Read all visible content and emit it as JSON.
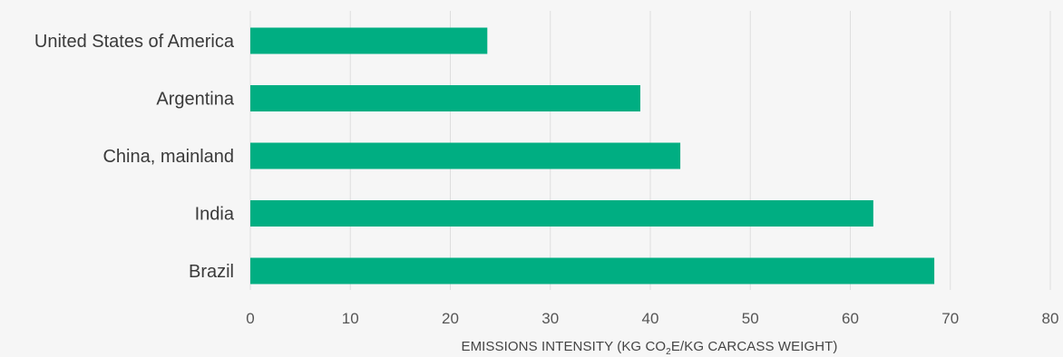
{
  "chart_data": {
    "type": "bar",
    "orientation": "horizontal",
    "categories": [
      "United States of America",
      "Argentina",
      "China, mainland",
      "India",
      "Brazil"
    ],
    "values": [
      23.7,
      39.0,
      43.0,
      62.3,
      68.4
    ],
    "xlabel_parts": [
      "EMISSIONS INTENSITY (KG CO",
      "2",
      "E/KG CARCASS WEIGHT)"
    ],
    "xlim": [
      0,
      80
    ],
    "xticks": [
      0,
      10,
      20,
      30,
      40,
      50,
      60,
      70,
      80
    ],
    "grid": "vertical",
    "legend": "none",
    "colors": {
      "bar": "#00ae82",
      "background": "#f6f6f6",
      "grid": "#dedede"
    }
  }
}
